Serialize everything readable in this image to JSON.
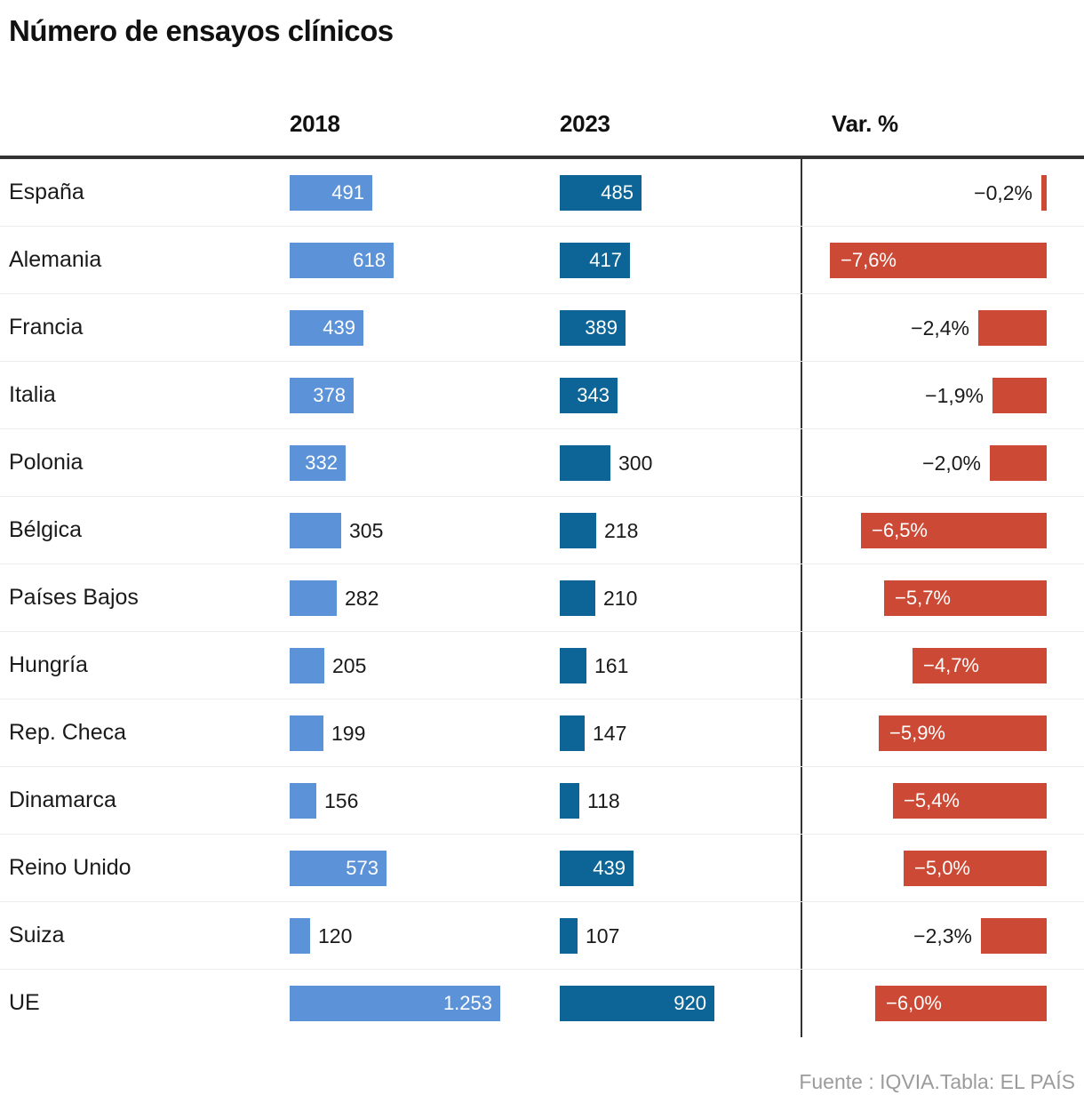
{
  "title": "Número de ensayos clínicos",
  "header": {
    "col_2018": "2018",
    "col_2023": "2023",
    "col_var": "Var. %"
  },
  "footer": {
    "source": "Fuente : IQVIA.Tabla: EL PAÍS"
  },
  "colors": {
    "bar_2018": "#5b92d8",
    "bar_2023": "#0c6596",
    "bar_var": "#cc4a35",
    "header_rule": "#333333",
    "row_separator": "#ececec",
    "text": "#1a1a1a",
    "bar_label_inside": "#ffffff",
    "source_text": "#9b9b9b"
  },
  "chart_data": {
    "type": "bar",
    "title": "Número de ensayos clínicos",
    "xlabel": "",
    "ylabel": "",
    "legend_position": "column headers",
    "layout": "horizontal bar table; one row per country; 2018 and 2023 bars left-aligned in their columns; Var. % bars right-aligned in red",
    "categories": [
      "España",
      "Alemania",
      "Francia",
      "Italia",
      "Polonia",
      "Bélgica",
      "Países Bajos",
      "Hungría",
      "Rep. Checa",
      "Dinamarca",
      "Reino Unido",
      "Suiza",
      "UE"
    ],
    "series": [
      {
        "name": "2018",
        "values": [
          491,
          618,
          439,
          378,
          332,
          305,
          282,
          205,
          199,
          156,
          573,
          120,
          1253
        ],
        "labels": [
          "491",
          "618",
          "439",
          "378",
          "332",
          "305",
          "282",
          "205",
          "199",
          "156",
          "573",
          "120",
          "1.253"
        ]
      },
      {
        "name": "2023",
        "values": [
          485,
          417,
          389,
          343,
          300,
          218,
          210,
          161,
          147,
          118,
          439,
          107,
          920
        ],
        "labels": [
          "485",
          "417",
          "389",
          "343",
          "300",
          "218",
          "210",
          "161",
          "147",
          "118",
          "439",
          "107",
          "920"
        ]
      },
      {
        "name": "Var. %",
        "values": [
          -0.2,
          -7.6,
          -2.4,
          -1.9,
          -2.0,
          -6.5,
          -5.7,
          -4.7,
          -5.9,
          -5.4,
          -5.0,
          -2.3,
          -6.0
        ],
        "labels": [
          "−0,2%",
          "−7,6%",
          "−2,4%",
          "−1,9%",
          "−2,0%",
          "−6,5%",
          "−5,7%",
          "−4,7%",
          "−5,9%",
          "−5,4%",
          "−5,0%",
          "−2,3%",
          "−6,0%"
        ]
      }
    ]
  }
}
